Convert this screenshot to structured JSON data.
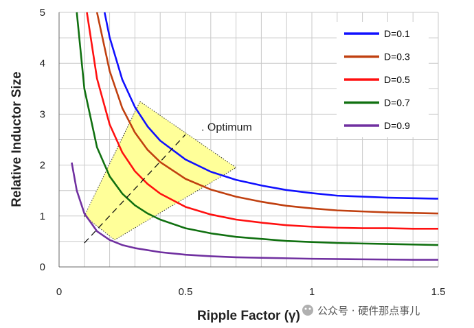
{
  "chart_data": {
    "type": "line",
    "title": "",
    "xlabel": "Ripple Factor (γ)",
    "ylabel": "Relative Inductor Size",
    "xlim": [
      0,
      1.5
    ],
    "ylim": [
      0,
      5
    ],
    "x_ticks": [
      "0",
      "0.5",
      "1",
      "1.5"
    ],
    "y_ticks": [
      "0",
      "1",
      "2",
      "3",
      "4",
      "5"
    ],
    "grid": true,
    "legend_position": "top-right",
    "series": [
      {
        "name": "D=0.1",
        "color": "#1010ff",
        "x": [
          0.18,
          0.2,
          0.25,
          0.3,
          0.35,
          0.4,
          0.5,
          0.6,
          0.7,
          0.8,
          0.9,
          1.0,
          1.1,
          1.2,
          1.3,
          1.4,
          1.5
        ],
        "y": [
          5.0,
          4.51,
          3.68,
          3.14,
          2.76,
          2.48,
          2.11,
          1.87,
          1.71,
          1.6,
          1.51,
          1.45,
          1.4,
          1.38,
          1.36,
          1.35,
          1.34
        ]
      },
      {
        "name": "D=0.3",
        "color": "#c04010",
        "x": [
          0.15,
          0.2,
          0.25,
          0.3,
          0.35,
          0.4,
          0.5,
          0.6,
          0.7,
          0.8,
          0.9,
          1.0,
          1.1,
          1.2,
          1.3,
          1.4,
          1.5
        ],
        "y": [
          5.0,
          3.85,
          3.12,
          2.64,
          2.3,
          2.06,
          1.73,
          1.52,
          1.38,
          1.28,
          1.2,
          1.15,
          1.11,
          1.09,
          1.07,
          1.06,
          1.05
        ]
      },
      {
        "name": "D=0.5",
        "color": "#ff1010",
        "x": [
          0.11,
          0.15,
          0.2,
          0.25,
          0.3,
          0.35,
          0.4,
          0.5,
          0.6,
          0.7,
          0.8,
          0.9,
          1.0,
          1.1,
          1.2,
          1.3,
          1.4,
          1.5
        ],
        "y": [
          5.0,
          3.7,
          2.8,
          2.25,
          1.88,
          1.63,
          1.44,
          1.18,
          1.03,
          0.93,
          0.87,
          0.82,
          0.79,
          0.77,
          0.76,
          0.76,
          0.75,
          0.75
        ]
      },
      {
        "name": "D=0.7",
        "color": "#107010",
        "x": [
          0.07,
          0.1,
          0.15,
          0.2,
          0.25,
          0.3,
          0.35,
          0.4,
          0.5,
          0.6,
          0.7,
          0.8,
          0.9,
          1.0,
          1.1,
          1.2,
          1.3,
          1.4,
          1.5
        ],
        "y": [
          5.0,
          3.5,
          2.35,
          1.78,
          1.44,
          1.21,
          1.05,
          0.93,
          0.76,
          0.66,
          0.59,
          0.55,
          0.51,
          0.49,
          0.47,
          0.46,
          0.45,
          0.44,
          0.43
        ]
      },
      {
        "name": "D=0.9",
        "color": "#7030a0",
        "x": [
          0.05,
          0.07,
          0.1,
          0.15,
          0.2,
          0.25,
          0.3,
          0.4,
          0.5,
          0.6,
          0.7,
          0.8,
          0.9,
          1.0,
          1.2,
          1.4,
          1.5
        ],
        "y": [
          2.05,
          1.5,
          1.05,
          0.7,
          0.53,
          0.43,
          0.37,
          0.29,
          0.24,
          0.21,
          0.19,
          0.18,
          0.17,
          0.16,
          0.15,
          0.14,
          0.14
        ]
      }
    ],
    "optimum_region": {
      "fill": "#ffff99",
      "polygon_x": [
        0.1,
        0.32,
        0.7,
        0.22
      ],
      "polygon_y": [
        1.0,
        3.25,
        1.95,
        0.53
      ]
    },
    "optimum_line": {
      "x": [
        0.1,
        0.5
      ],
      "y": [
        0.47,
        2.6
      ]
    },
    "annotations": [
      {
        "text": ". Optimum",
        "x": 0.53,
        "y": 2.7
      }
    ]
  },
  "watermark": "公众号 · 硬件那点事儿"
}
